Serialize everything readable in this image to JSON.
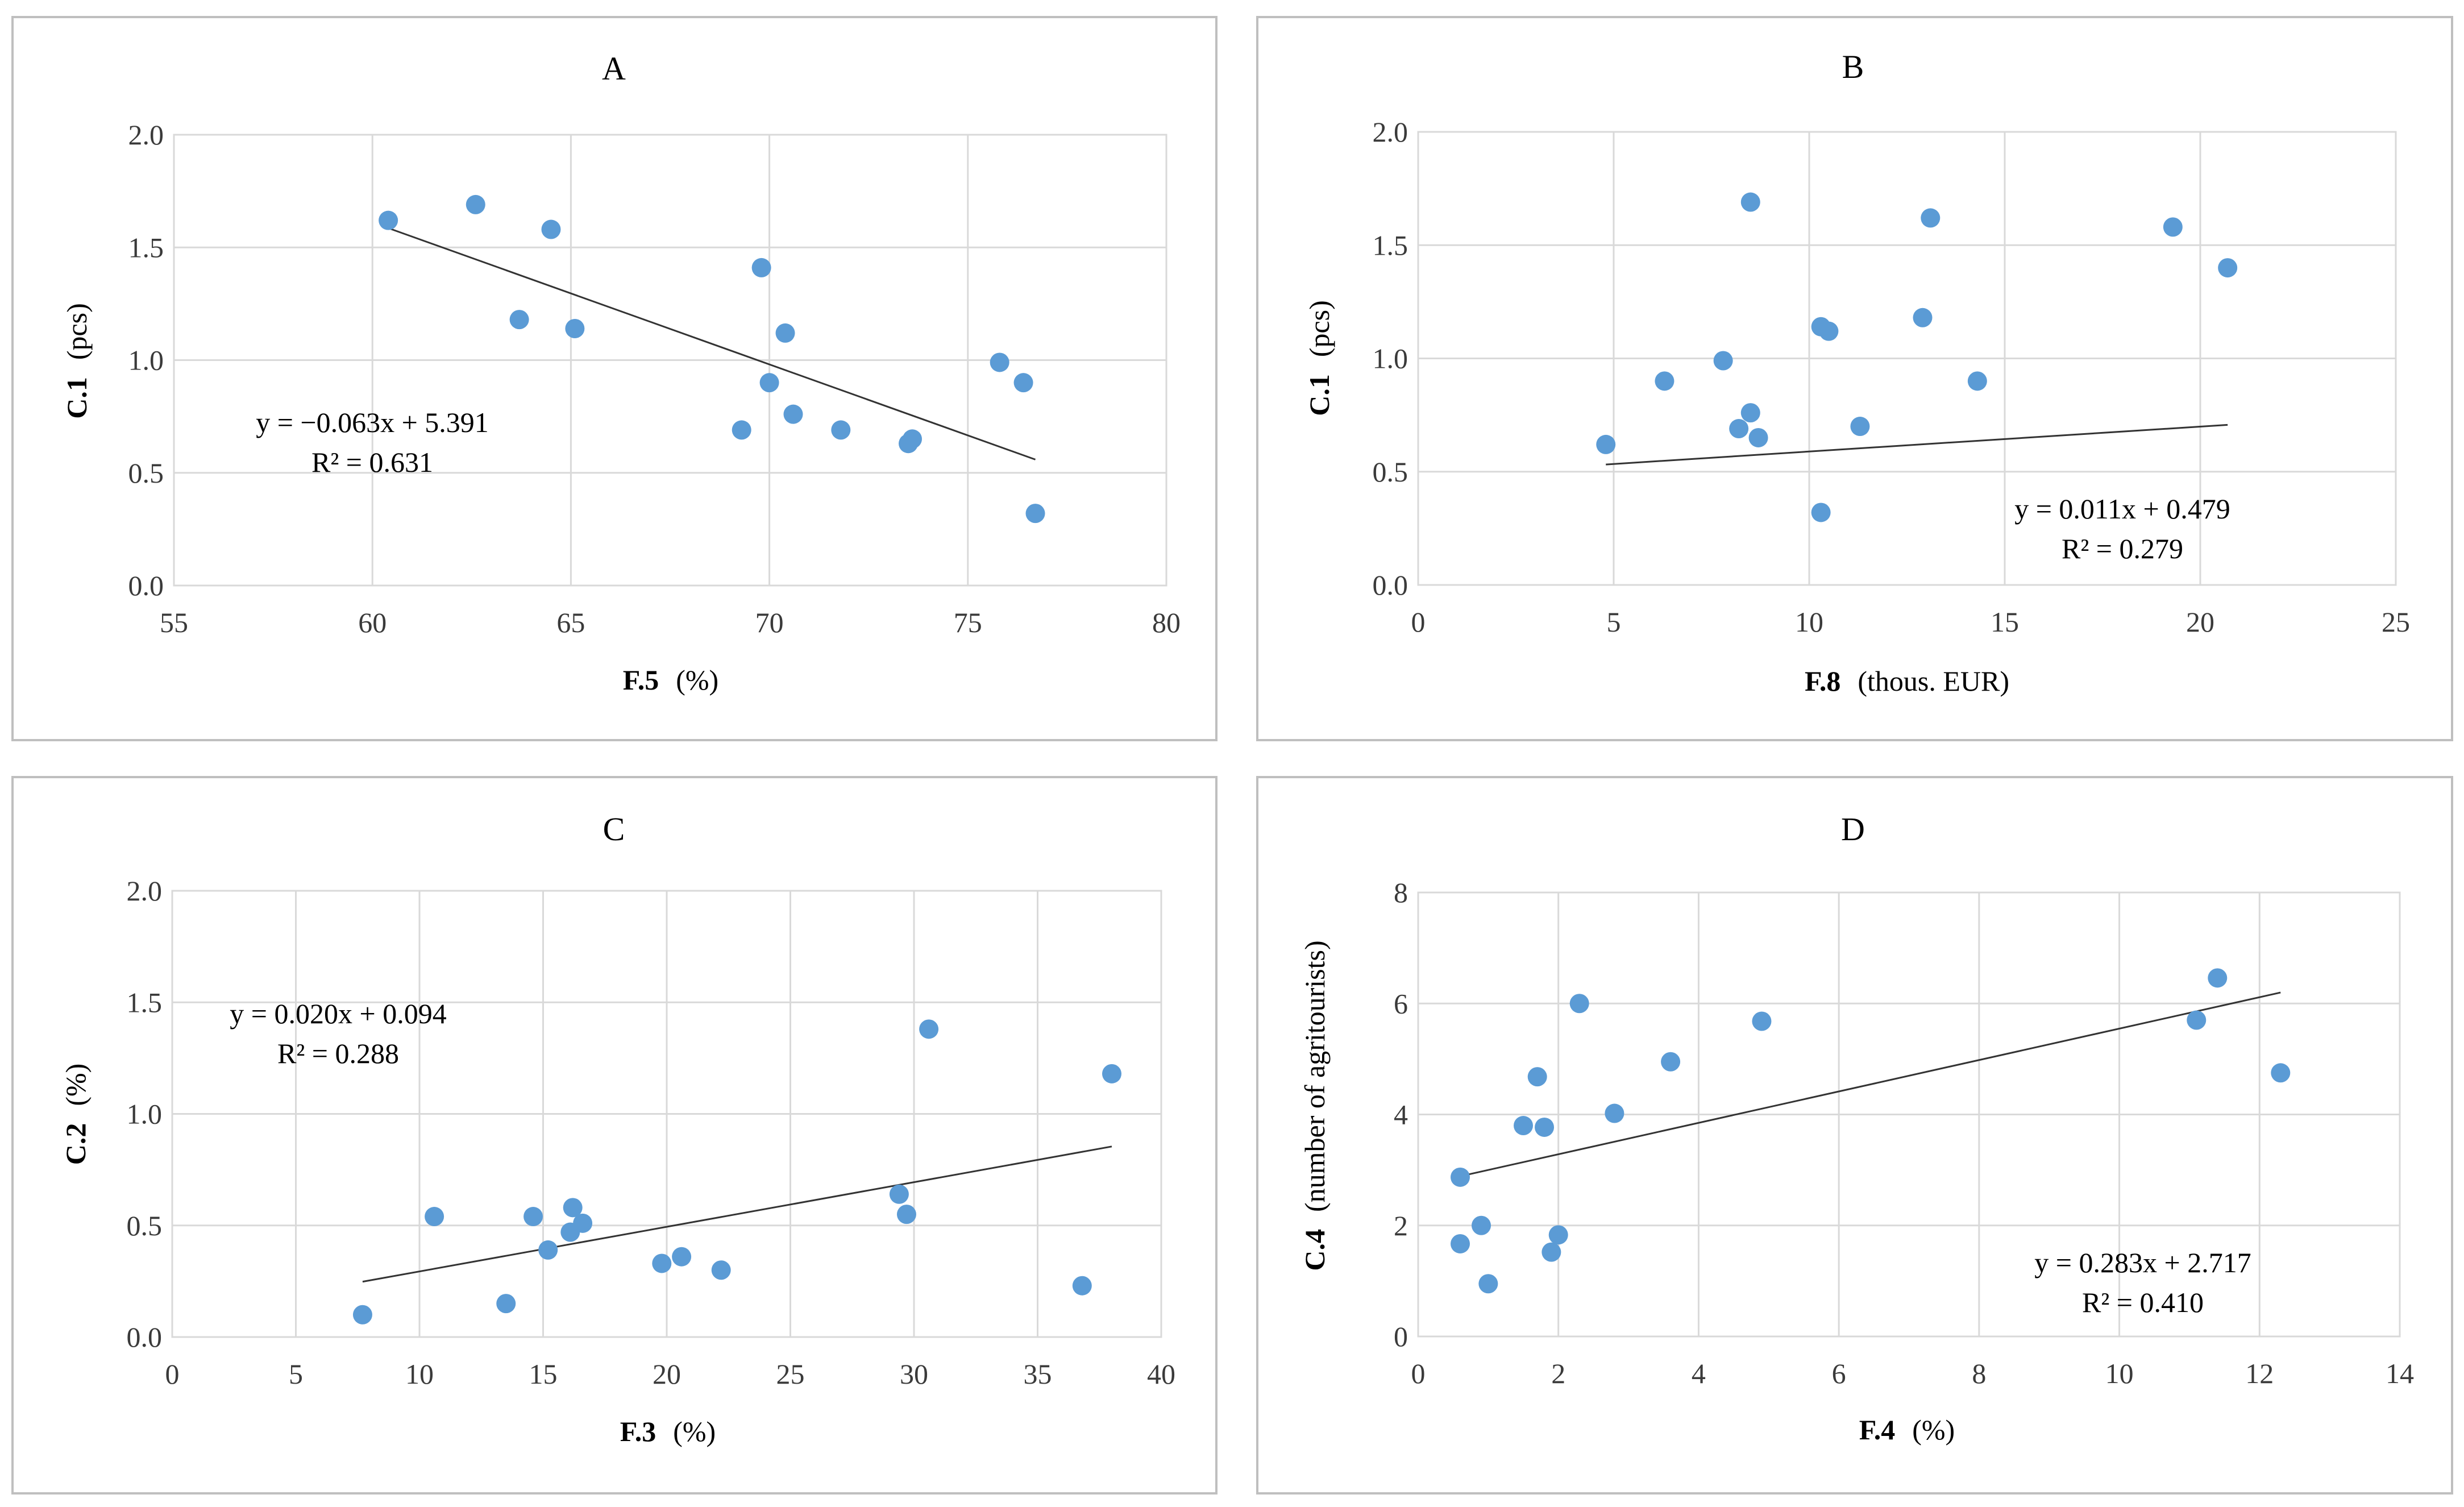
{
  "colors": {
    "point": "#5b9bd5",
    "trend": "#333333"
  },
  "chart_data": [
    {
      "type": "scatter",
      "title": "A",
      "xlabel_code": "F.5",
      "xlabel_unit": "(%)",
      "ylabel_code": "C.1",
      "ylabel_unit": "(pcs)",
      "xlim": [
        55,
        80
      ],
      "ylim": [
        0,
        2.0
      ],
      "xticks": [
        55,
        60,
        65,
        70,
        75,
        80
      ],
      "yticks": [
        0,
        0.5,
        1.0,
        1.5,
        2.0
      ],
      "xtick_labels": [
        "55",
        "60",
        "65",
        "70",
        "75",
        "80"
      ],
      "ytick_labels": [
        "0.0",
        "0.5",
        "1.0",
        "1.5",
        "2.0"
      ],
      "points": [
        [
          60.4,
          1.62
        ],
        [
          62.6,
          1.69
        ],
        [
          64.5,
          1.58
        ],
        [
          63.7,
          1.18
        ],
        [
          65.1,
          1.14
        ],
        [
          69.8,
          1.41
        ],
        [
          70.4,
          1.12
        ],
        [
          70.0,
          0.9
        ],
        [
          69.3,
          0.69
        ],
        [
          70.6,
          0.76
        ],
        [
          71.8,
          0.69
        ],
        [
          73.5,
          0.63
        ],
        [
          73.6,
          0.65
        ],
        [
          75.8,
          0.99
        ],
        [
          76.4,
          0.9
        ],
        [
          76.7,
          0.32
        ]
      ],
      "trendline": {
        "slope": -0.063,
        "intercept": 5.391,
        "x_range": [
          60.4,
          76.7
        ]
      },
      "equation": "y = −0.063x + 5.391",
      "r2": "R² = 0.631"
    },
    {
      "type": "scatter",
      "title": "B",
      "xlabel_code": "F.8",
      "xlabel_unit": "(thous. EUR)",
      "ylabel_code": "C.1",
      "ylabel_unit": "(pcs)",
      "xlim": [
        0,
        25
      ],
      "ylim": [
        0,
        2.0
      ],
      "xticks": [
        0,
        5,
        10,
        15,
        20,
        25
      ],
      "yticks": [
        0,
        0.5,
        1.0,
        1.5,
        2.0
      ],
      "xtick_labels": [
        "0",
        "5",
        "10",
        "15",
        "20",
        "25"
      ],
      "ytick_labels": [
        "0.0",
        "0.5",
        "1.0",
        "1.5",
        "2.0"
      ],
      "points": [
        [
          4.8,
          0.62
        ],
        [
          6.3,
          0.9
        ],
        [
          7.8,
          0.99
        ],
        [
          8.2,
          0.69
        ],
        [
          8.5,
          0.76
        ],
        [
          8.7,
          0.65
        ],
        [
          8.5,
          1.69
        ],
        [
          10.3,
          1.14
        ],
        [
          10.5,
          1.12
        ],
        [
          10.3,
          0.32
        ],
        [
          11.3,
          0.7
        ],
        [
          12.9,
          1.18
        ],
        [
          13.1,
          1.62
        ],
        [
          14.3,
          0.9
        ],
        [
          19.3,
          1.58
        ],
        [
          20.7,
          1.4
        ]
      ],
      "trendline": {
        "slope": 0.011,
        "intercept": 0.479,
        "x_range": [
          4.8,
          20.7
        ]
      },
      "equation": "y = 0.011x + 0.479",
      "r2": "R² = 0.279"
    },
    {
      "type": "scatter",
      "title": "C",
      "xlabel_code": "F.3",
      "xlabel_unit": "(%)",
      "ylabel_code": "C.2",
      "ylabel_unit": "(%)",
      "xlim": [
        0,
        40
      ],
      "ylim": [
        0,
        2.0
      ],
      "xticks": [
        0,
        5,
        10,
        15,
        20,
        25,
        30,
        35,
        40
      ],
      "yticks": [
        0,
        0.5,
        1.0,
        1.5,
        2.0
      ],
      "xtick_labels": [
        "0",
        "5",
        "10",
        "15",
        "20",
        "25",
        "30",
        "35",
        "40"
      ],
      "ytick_labels": [
        "0.0",
        "0.5",
        "1.0",
        "1.5",
        "2.0"
      ],
      "points": [
        [
          7.7,
          0.1
        ],
        [
          10.6,
          0.54
        ],
        [
          13.5,
          0.15
        ],
        [
          14.6,
          0.54
        ],
        [
          15.2,
          0.39
        ],
        [
          16.1,
          0.47
        ],
        [
          16.2,
          0.58
        ],
        [
          16.6,
          0.51
        ],
        [
          19.8,
          0.33
        ],
        [
          20.6,
          0.36
        ],
        [
          22.2,
          0.3
        ],
        [
          29.4,
          0.64
        ],
        [
          29.7,
          0.55
        ],
        [
          30.6,
          1.38
        ],
        [
          36.8,
          0.23
        ],
        [
          38.0,
          1.18
        ]
      ],
      "trendline": {
        "slope": 0.02,
        "intercept": 0.094,
        "x_range": [
          7.7,
          38.0
        ]
      },
      "equation": "y = 0.020x + 0.094",
      "r2": "R² = 0.288"
    },
    {
      "type": "scatter",
      "title": "D",
      "xlabel_code": "F.4",
      "xlabel_unit": "(%)",
      "ylabel_code": "C.4",
      "ylabel_unit": "(number of agritourists)",
      "xlim": [
        0,
        14
      ],
      "ylim": [
        0,
        8
      ],
      "xticks": [
        0,
        2,
        4,
        6,
        8,
        10,
        12,
        14
      ],
      "yticks": [
        0,
        2,
        4,
        6,
        8
      ],
      "xtick_labels": [
        "0",
        "2",
        "4",
        "6",
        "8",
        "10",
        "12",
        "14"
      ],
      "ytick_labels": [
        "0",
        "2",
        "4",
        "6",
        "8"
      ],
      "points": [
        [
          0.6,
          2.87
        ],
        [
          0.6,
          1.67
        ],
        [
          0.9,
          2.0
        ],
        [
          1.0,
          0.95
        ],
        [
          1.5,
          3.8
        ],
        [
          1.7,
          4.68
        ],
        [
          1.8,
          3.77
        ],
        [
          1.9,
          1.52
        ],
        [
          2.0,
          1.83
        ],
        [
          2.3,
          6.0
        ],
        [
          2.8,
          4.02
        ],
        [
          3.6,
          4.95
        ],
        [
          4.9,
          5.68
        ],
        [
          11.1,
          5.7
        ],
        [
          11.4,
          6.46
        ],
        [
          12.3,
          4.75
        ]
      ],
      "trendline": {
        "slope": 0.283,
        "intercept": 2.717,
        "x_range": [
          0.6,
          12.3
        ]
      },
      "equation": "y = 0.283x + 2.717",
      "r2": "R² = 0.410"
    }
  ]
}
